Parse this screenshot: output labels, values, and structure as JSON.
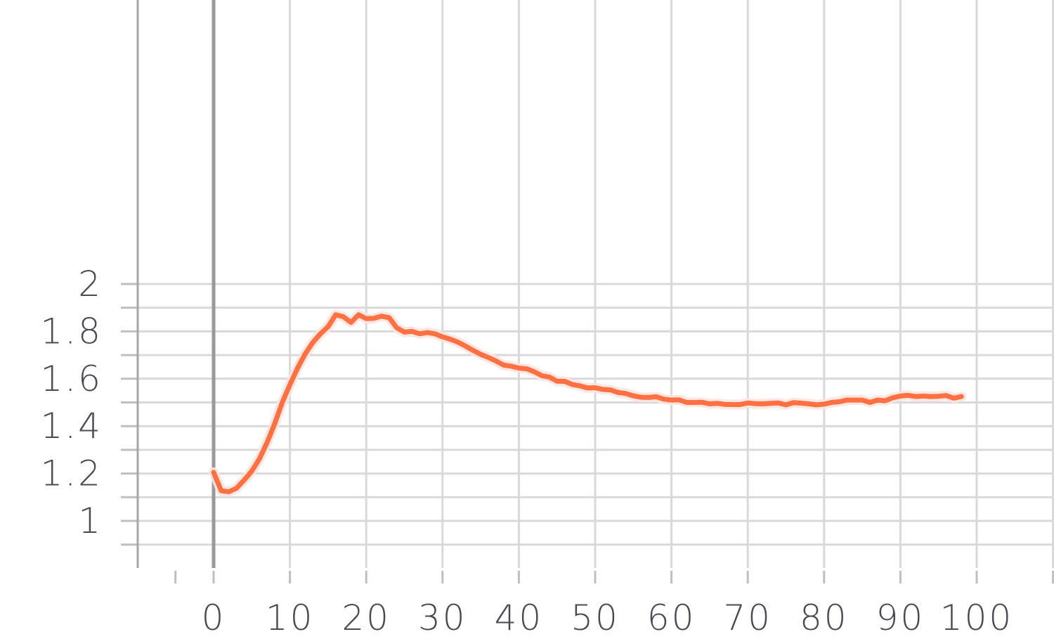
{
  "chart_data": {
    "type": "line",
    "title": "",
    "xlabel": "",
    "ylabel": "",
    "xlim": [
      -5,
      110
    ],
    "ylim": [
      0.9,
      2.1
    ],
    "x_ticks": [
      0,
      10,
      20,
      30,
      40,
      50,
      60,
      70,
      80,
      90,
      100
    ],
    "x_tick_labels": [
      "0",
      "10",
      "20",
      "30",
      "40",
      "50",
      "60",
      "70",
      "80",
      "90",
      "100"
    ],
    "y_ticks": [
      1,
      1.2,
      1.4,
      1.6,
      1.8,
      2
    ],
    "y_tick_labels": [
      "1",
      "1.2",
      "1.4",
      "1.6",
      "1.8",
      "2"
    ],
    "y_minor_ticks": [
      0.9,
      1.1,
      1.3,
      1.5,
      1.7,
      1.9
    ],
    "grid": true,
    "series": [
      {
        "color": "#ff7043",
        "band_color": "#fbe3df",
        "x": [
          0,
          1,
          2,
          3,
          4,
          5,
          6,
          7,
          8,
          9,
          10,
          11,
          12,
          13,
          14,
          15,
          16,
          17,
          18,
          19,
          20,
          21,
          22,
          23,
          24,
          25,
          26,
          27,
          28,
          29,
          30,
          31,
          32,
          33,
          34,
          35,
          36,
          37,
          38,
          39,
          40,
          41,
          42,
          43,
          44,
          45,
          46,
          47,
          48,
          49,
          50,
          51,
          52,
          53,
          54,
          55,
          56,
          57,
          58,
          59,
          60,
          61,
          62,
          63,
          64,
          65,
          66,
          67,
          68,
          69,
          70,
          71,
          72,
          73,
          74,
          75,
          76,
          77,
          78,
          79,
          80,
          81,
          82,
          83,
          84,
          85,
          86,
          87,
          88,
          89,
          90,
          91,
          92,
          93,
          94,
          95,
          96,
          97,
          98
        ],
        "y": [
          1.205,
          1.127,
          1.123,
          1.138,
          1.172,
          1.21,
          1.262,
          1.33,
          1.41,
          1.5,
          1.575,
          1.645,
          1.705,
          1.753,
          1.79,
          1.82,
          1.87,
          1.862,
          1.838,
          1.87,
          1.854,
          1.855,
          1.864,
          1.858,
          1.815,
          1.797,
          1.8,
          1.79,
          1.795,
          1.79,
          1.777,
          1.767,
          1.755,
          1.738,
          1.72,
          1.703,
          1.69,
          1.675,
          1.658,
          1.653,
          1.645,
          1.642,
          1.63,
          1.613,
          1.607,
          1.59,
          1.589,
          1.576,
          1.57,
          1.561,
          1.562,
          1.555,
          1.553,
          1.542,
          1.538,
          1.528,
          1.522,
          1.521,
          1.524,
          1.514,
          1.51,
          1.511,
          1.5,
          1.5,
          1.501,
          1.494,
          1.496,
          1.492,
          1.491,
          1.491,
          1.498,
          1.495,
          1.494,
          1.496,
          1.498,
          1.49,
          1.499,
          1.497,
          1.494,
          1.49,
          1.493,
          1.5,
          1.503,
          1.51,
          1.51,
          1.51,
          1.5,
          1.51,
          1.507,
          1.52,
          1.527,
          1.53,
          1.525,
          1.527,
          1.525,
          1.526,
          1.529,
          1.518,
          1.525
        ]
      }
    ]
  }
}
